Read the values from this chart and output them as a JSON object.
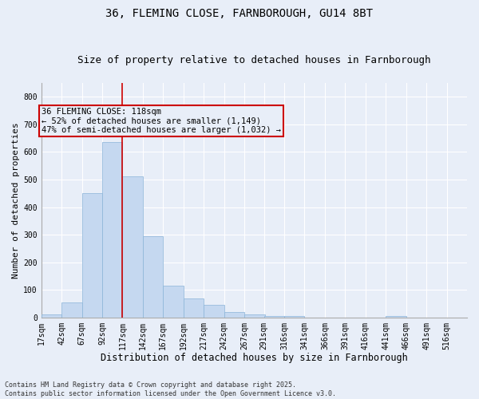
{
  "title1": "36, FLEMING CLOSE, FARNBOROUGH, GU14 8BT",
  "title2": "Size of property relative to detached houses in Farnborough",
  "xlabel": "Distribution of detached houses by size in Farnborough",
  "ylabel": "Number of detached properties",
  "bar_color": "#c5d8f0",
  "bar_edge_color": "#8ab4d8",
  "background_color": "#e8eef8",
  "grid_color": "#ffffff",
  "annotation_box_color": "#cc0000",
  "vline_color": "#cc0000",
  "vline_x": 117,
  "annotation_text": "36 FLEMING CLOSE: 118sqm\n← 52% of detached houses are smaller (1,149)\n47% of semi-detached houses are larger (1,032) →",
  "bins_left": [
    17,
    42,
    67,
    92,
    117,
    142,
    167,
    192,
    217,
    242,
    267,
    291,
    316,
    341,
    366,
    391,
    416,
    441,
    466,
    491,
    516
  ],
  "bin_width": 25,
  "heights": [
    10,
    55,
    450,
    635,
    510,
    295,
    115,
    70,
    45,
    20,
    10,
    5,
    5,
    0,
    0,
    0,
    0,
    5,
    0,
    0,
    0
  ],
  "ylim": [
    0,
    850
  ],
  "yticks": [
    0,
    100,
    200,
    300,
    400,
    500,
    600,
    700,
    800
  ],
  "footnote": "Contains HM Land Registry data © Crown copyright and database right 2025.\nContains public sector information licensed under the Open Government Licence v3.0.",
  "title1_fontsize": 10,
  "title2_fontsize": 9,
  "xlabel_fontsize": 8.5,
  "ylabel_fontsize": 8,
  "tick_fontsize": 7,
  "annot_fontsize": 7.5,
  "footnote_fontsize": 6
}
